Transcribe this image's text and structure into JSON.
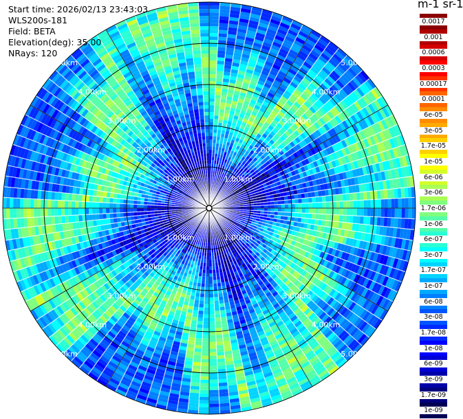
{
  "info": {
    "start_time": "Start time: 2026/02/13 23:43:03",
    "instrument": "WLS200s-181",
    "field": "Field: BETA",
    "elevation": "Elevation(deg): 35.00",
    "nrays": "NRays: 120"
  },
  "colorbar": {
    "title": "m-1 sr-1",
    "labels": [
      "0.0017",
      "0.001",
      "0.0006",
      "0.0003",
      "0.00017",
      "0.0001",
      "6e-05",
      "3e-05",
      "1.7e-05",
      "1e-05",
      "6e-06",
      "3e-06",
      "1.7e-06",
      "1e-06",
      "6e-07",
      "3e-07",
      "1.7e-07",
      "1e-07",
      "6e-08",
      "3e-08",
      "1.7e-08",
      "1e-08",
      "6e-09",
      "3e-09",
      "1.7e-09",
      "1e-09"
    ],
    "colors": [
      "#8b0000",
      "#b00000",
      "#d40000",
      "#ff0000",
      "#ff3300",
      "#ff6600",
      "#ff8c00",
      "#ffaa00",
      "#ffd000",
      "#ffff00",
      "#d4ff2a",
      "#aaff55",
      "#7fff7f",
      "#55ffaa",
      "#2affd4",
      "#00ffff",
      "#00d4ff",
      "#00aaff",
      "#0080ff",
      "#0055ff",
      "#002aff",
      "#0000ff",
      "#0000d4",
      "#0000aa",
      "#00007f",
      "#000055"
    ]
  },
  "chart_data": {
    "type": "heatmap",
    "projection": "polar (PPI scan)",
    "field": "BETA",
    "units": "m-1 sr-1",
    "color_scale": "log",
    "color_range": [
      1e-09,
      0.0017
    ],
    "n_rays": 120,
    "elevation_deg": 35.0,
    "range_rings_km": [
      1.0,
      2.0,
      3.0,
      4.0,
      5.0
    ],
    "max_range_km": 5.0,
    "ring_label_texts": [
      "1.00km",
      "2.00km",
      "3.00km",
      "4.00km",
      "5.00km"
    ],
    "spokes_deg": [
      0,
      30,
      60,
      90,
      120,
      150
    ],
    "radial_profile": [
      {
        "range_km": 0.0,
        "beta": 1e-09
      },
      {
        "range_km": 1.0,
        "beta": 1e-08
      },
      {
        "range_km": 1.5,
        "beta": 5e-08
      },
      {
        "range_km": 2.0,
        "beta": 2e-07
      },
      {
        "range_km": 2.5,
        "beta": 1e-06
      },
      {
        "range_km": 3.0,
        "beta": 2e-06
      },
      {
        "range_km": 3.5,
        "beta": 3e-07
      },
      {
        "range_km": 4.0,
        "beta": 5e-08
      },
      {
        "range_km": 5.0,
        "beta": 3e-08
      }
    ]
  }
}
